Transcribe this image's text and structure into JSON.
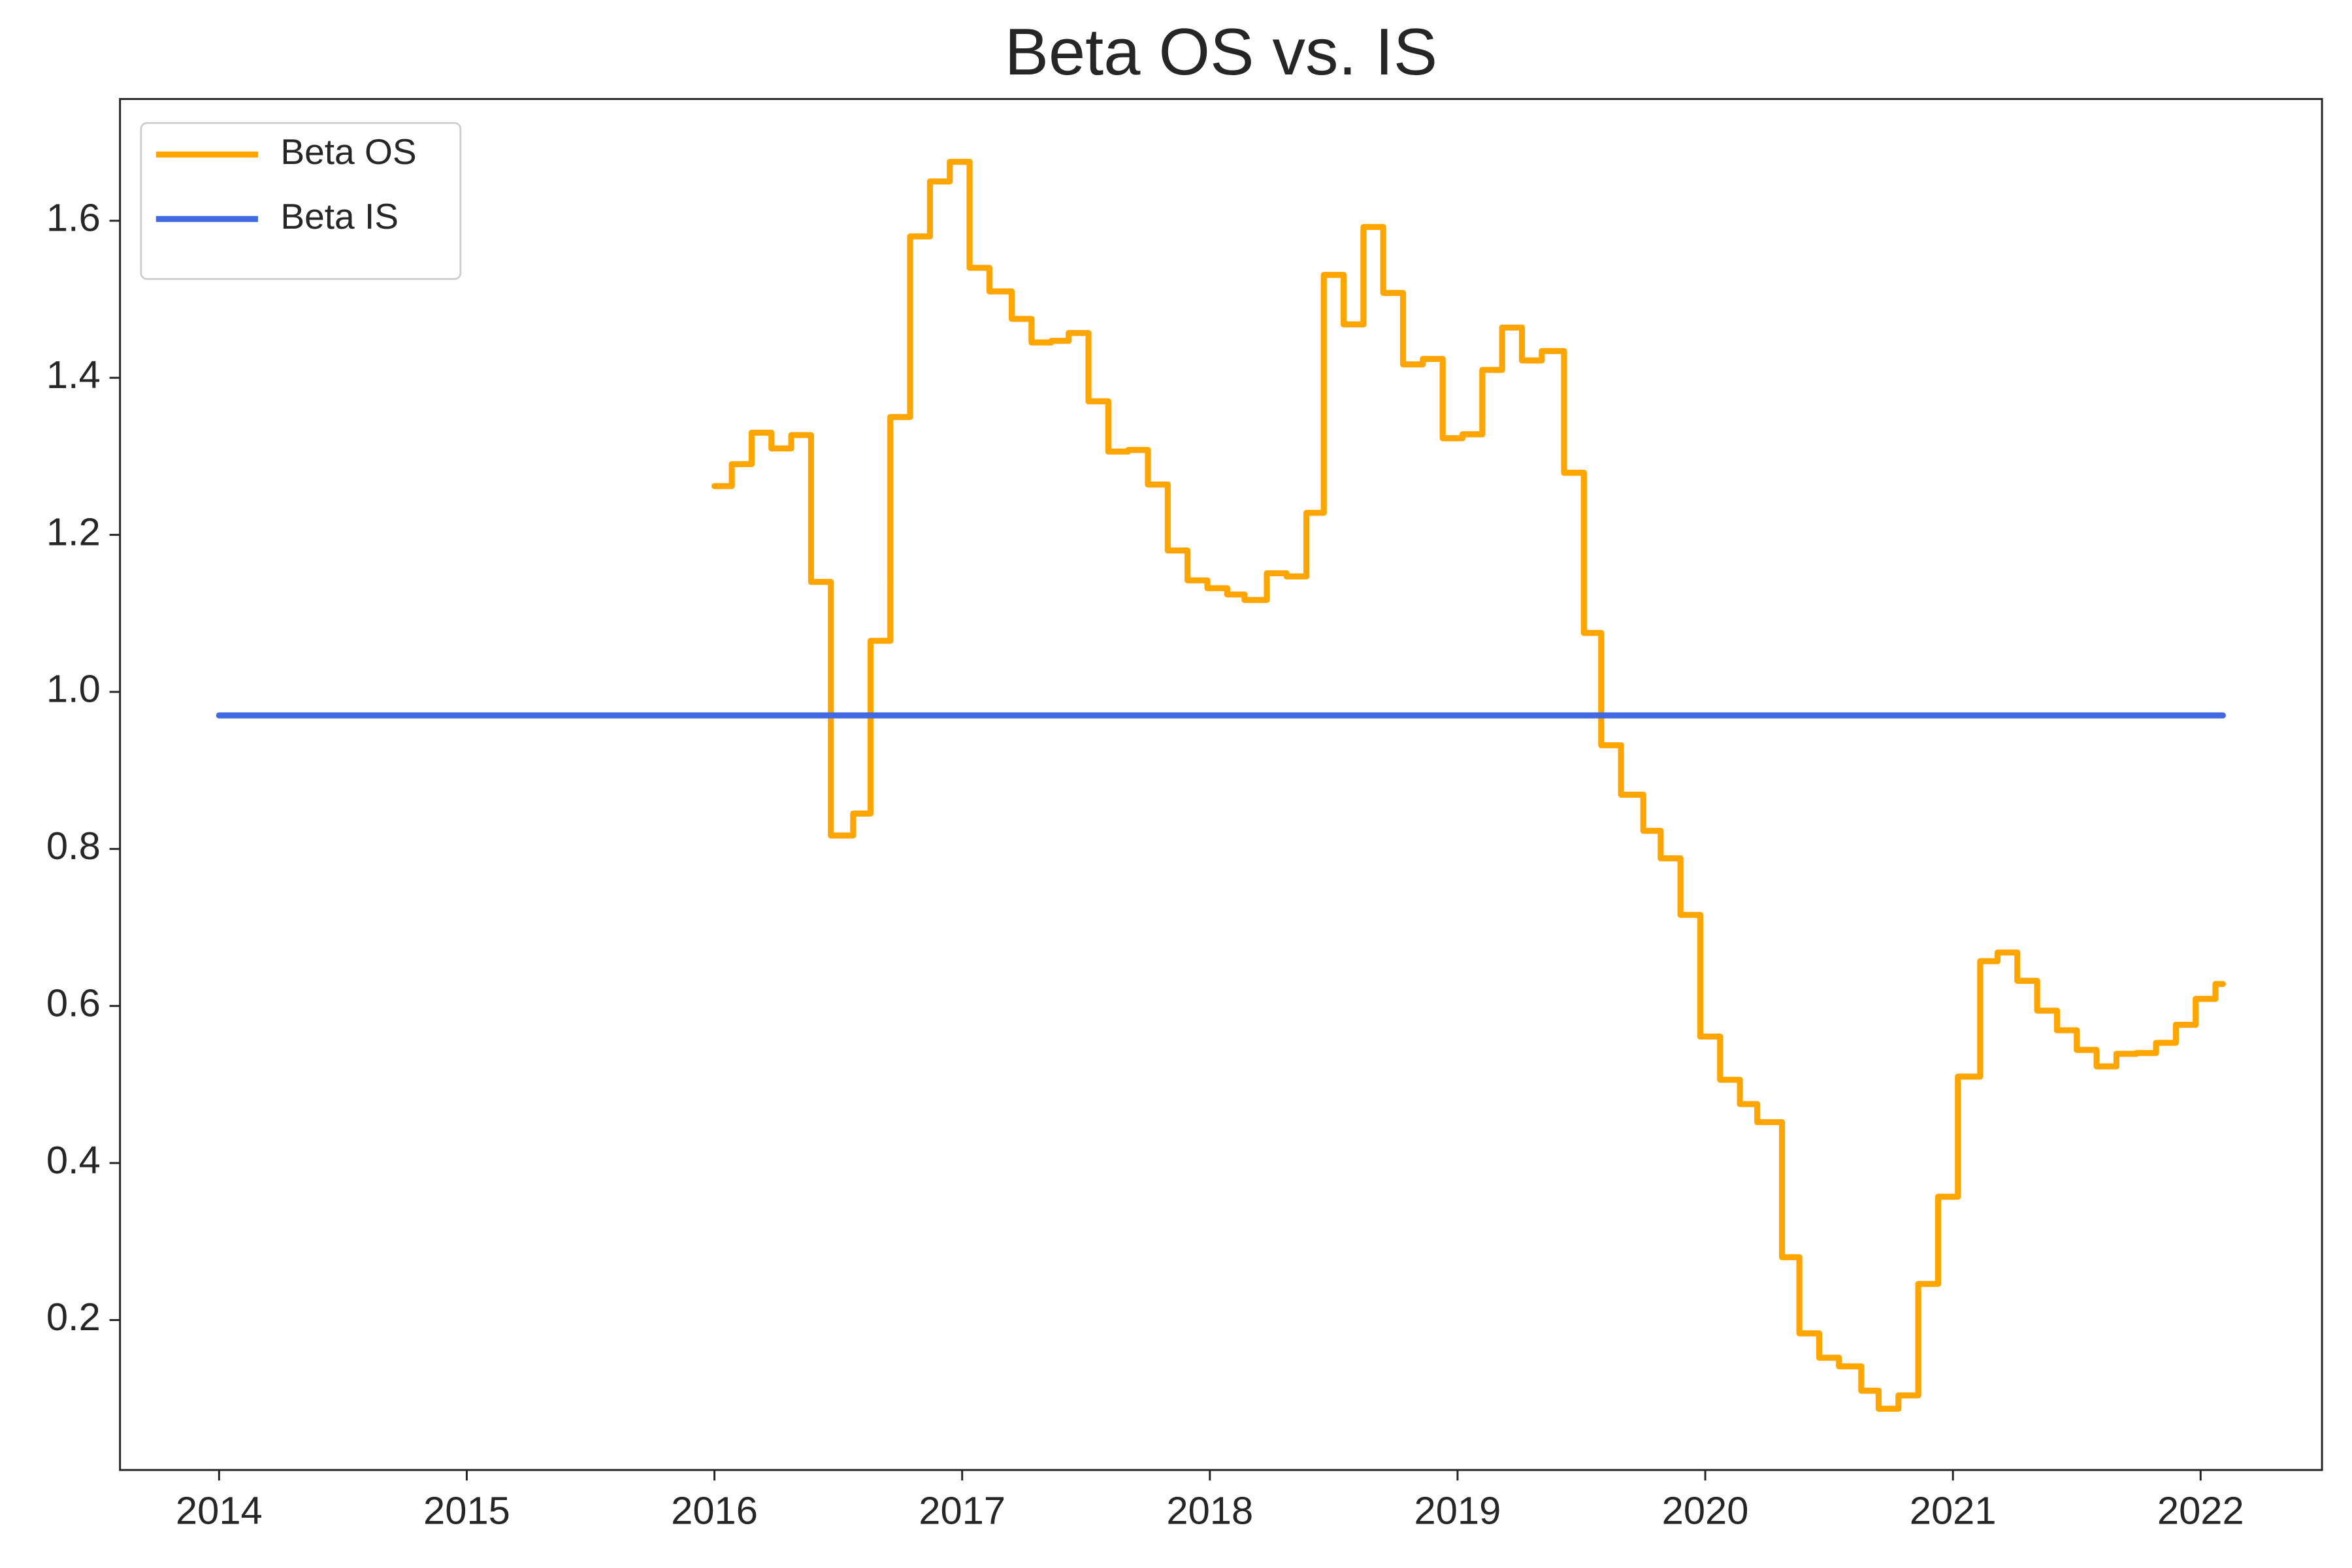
{
  "chart_data": {
    "type": "line",
    "title": "Beta OS vs. IS",
    "drawstyle": "steps-post",
    "xlim": [
      2013.6,
      2022.49
    ],
    "xticks": [
      2014,
      2015,
      2016,
      2017,
      2018,
      2019,
      2020,
      2021,
      2022
    ],
    "ylim": [
      0.009,
      1.755
    ],
    "yticks": [
      {
        "value": 0.2,
        "label": "0.2"
      },
      {
        "value": 0.4,
        "label": "0.4"
      },
      {
        "value": 0.6,
        "label": "0.6"
      },
      {
        "value": 0.8,
        "label": "0.8"
      },
      {
        "value": 1.0,
        "label": "1.0"
      },
      {
        "value": 1.2,
        "label": "1.2"
      },
      {
        "value": 1.4,
        "label": "1.4"
      },
      {
        "value": 1.6,
        "label": "1.6"
      }
    ],
    "grid": false,
    "legend": "upper left",
    "series": [
      {
        "name": "Beta OS",
        "color": "#FFA500",
        "x": [
          2016.0,
          2016.07,
          2016.15,
          2016.23,
          2016.31,
          2016.39,
          2016.47,
          2016.56,
          2016.63,
          2016.71,
          2016.79,
          2016.87,
          2016.95,
          2017.03,
          2017.11,
          2017.2,
          2017.28,
          2017.36,
          2017.43,
          2017.51,
          2017.59,
          2017.67,
          2017.75,
          2017.83,
          2017.91,
          2017.99,
          2018.07,
          2018.14,
          2018.23,
          2018.31,
          2018.39,
          2018.46,
          2018.54,
          2018.62,
          2018.7,
          2018.78,
          2018.86,
          2018.94,
          2019.02,
          2019.1,
          2019.18,
          2019.26,
          2019.34,
          2019.43,
          2019.51,
          2019.58,
          2019.66,
          2019.75,
          2019.82,
          2019.9,
          2019.98,
          2020.06,
          2020.14,
          2020.21,
          2020.31,
          2020.38,
          2020.46,
          2020.54,
          2020.63,
          2020.7,
          2020.78,
          2020.86,
          2020.94,
          2021.02,
          2021.11,
          2021.18,
          2021.26,
          2021.34,
          2021.42,
          2021.5,
          2021.58,
          2021.66,
          2021.74,
          2021.82,
          2021.9,
          2021.98,
          2022.06,
          2022.09
        ],
        "values": [
          1.262,
          1.29,
          1.33,
          1.31,
          1.327,
          1.14,
          0.817,
          0.845,
          1.065,
          1.35,
          1.58,
          1.65,
          1.675,
          1.54,
          1.51,
          1.475,
          1.445,
          1.447,
          1.457,
          1.37,
          1.306,
          1.308,
          1.264,
          1.18,
          1.142,
          1.132,
          1.124,
          1.117,
          1.151,
          1.147,
          1.228,
          1.531,
          1.468,
          1.592,
          1.508,
          1.417,
          1.424,
          1.323,
          1.328,
          1.41,
          1.464,
          1.422,
          1.434,
          1.279,
          1.075,
          0.932,
          0.869,
          0.823,
          0.788,
          0.716,
          0.561,
          0.506,
          0.475,
          0.452,
          0.28,
          0.183,
          0.152,
          0.141,
          0.11,
          0.087,
          0.104,
          0.246,
          0.357,
          0.51,
          0.657,
          0.668,
          0.632,
          0.594,
          0.569,
          0.544,
          0.523,
          0.539,
          0.54,
          0.553,
          0.576,
          0.609,
          0.628,
          0.628
        ]
      },
      {
        "name": "Beta IS",
        "color": "#4169E1",
        "x": [
          2014,
          2022.09
        ],
        "values": [
          0.97,
          0.97
        ]
      }
    ]
  }
}
